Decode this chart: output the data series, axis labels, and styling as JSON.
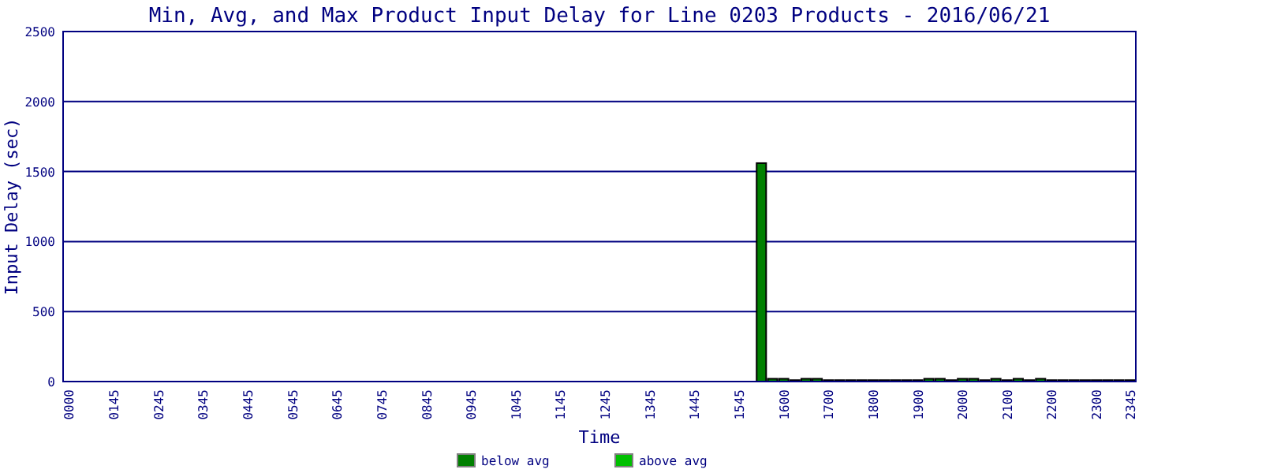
{
  "chart_data": {
    "type": "bar",
    "title": "Min, Avg, and Max Product Input Delay for Line 0203 Products - 2016/06/21",
    "xlabel": "Time",
    "ylabel": "Input Delay (sec)",
    "categories": [
      "0000",
      null,
      null,
      null,
      "0145",
      null,
      null,
      null,
      "0245",
      null,
      null,
      null,
      "0345",
      null,
      null,
      null,
      "0445",
      null,
      null,
      null,
      "0545",
      null,
      null,
      null,
      "0645",
      null,
      null,
      null,
      "0745",
      null,
      null,
      null,
      "0845",
      null,
      null,
      null,
      "0945",
      null,
      null,
      null,
      "1045",
      null,
      null,
      null,
      "1145",
      null,
      null,
      null,
      "1245",
      null,
      null,
      null,
      "1345",
      null,
      null,
      null,
      "1445",
      null,
      null,
      null,
      "1545",
      null,
      null,
      null,
      "1600",
      null,
      null,
      null,
      "1700",
      null,
      null,
      null,
      "1800",
      null,
      null,
      null,
      "1900",
      null,
      null,
      null,
      "2000",
      null,
      null,
      null,
      "2100",
      null,
      null,
      null,
      "2200",
      null,
      null,
      null,
      "2300",
      null,
      null,
      "2345"
    ],
    "series": [
      {
        "name": "below avg",
        "color": "#008000",
        "values": [
          null,
          null,
          null,
          null,
          null,
          null,
          null,
          null,
          null,
          null,
          null,
          null,
          null,
          null,
          null,
          null,
          null,
          null,
          null,
          null,
          null,
          null,
          null,
          null,
          null,
          null,
          null,
          null,
          null,
          null,
          null,
          null,
          null,
          null,
          null,
          null,
          null,
          null,
          null,
          null,
          null,
          null,
          null,
          null,
          null,
          null,
          null,
          null,
          null,
          null,
          null,
          null,
          null,
          null,
          null,
          null,
          null,
          null,
          null,
          null,
          null,
          null,
          1560,
          20,
          20,
          10,
          20,
          20,
          10,
          10,
          10,
          10,
          10,
          10,
          10,
          10,
          10,
          20,
          20,
          10,
          20,
          20,
          10,
          20,
          10,
          20,
          10,
          20,
          10,
          10,
          10,
          10,
          10,
          10,
          10,
          10
        ]
      },
      {
        "name": "above avg",
        "color": "#00c000",
        "values": [
          null,
          null,
          null,
          null,
          null,
          null,
          null,
          null,
          null,
          null,
          null,
          null,
          null,
          null,
          null,
          null,
          null,
          null,
          null,
          null,
          null,
          null,
          null,
          null,
          null,
          null,
          null,
          null,
          null,
          null,
          null,
          null,
          null,
          null,
          null,
          null,
          null,
          null,
          null,
          null,
          null,
          null,
          null,
          null,
          null,
          null,
          null,
          null,
          null,
          null,
          null,
          null,
          null,
          null,
          null,
          null,
          null,
          null,
          null,
          null,
          null,
          null,
          null,
          null,
          null,
          null,
          null,
          null,
          null,
          null,
          null,
          null,
          null,
          null,
          null,
          null,
          null,
          null,
          null,
          null,
          null,
          null,
          null,
          null,
          null,
          null,
          null,
          null,
          null,
          null,
          null,
          null,
          null,
          null,
          null,
          null
        ]
      }
    ],
    "ylim": [
      0,
      2500
    ],
    "yticks": [
      0,
      500,
      1000,
      1500,
      2000,
      2500
    ],
    "grid": "y",
    "legend": "bottom"
  }
}
